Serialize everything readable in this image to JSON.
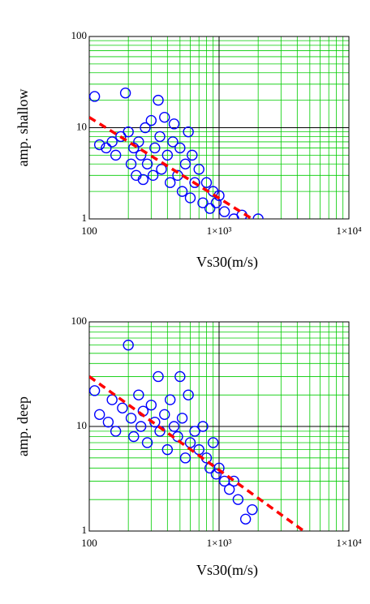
{
  "chart_data": [
    {
      "type": "scatter",
      "y_label": "amp. shallow",
      "x_label": "Vs30(m/s)",
      "log_x": true,
      "log_y": true,
      "grid": true,
      "minor_grid": true,
      "xlim": [
        100,
        10000
      ],
      "ylim": [
        1,
        100
      ],
      "xticks": [
        100,
        {
          "value": 1000,
          "label": "1×10³"
        },
        {
          "value": 10000,
          "label": "1×10⁴"
        }
      ],
      "yticks": [
        1,
        10,
        100
      ],
      "series": [
        {
          "type": "scatter",
          "color": "#0000ff",
          "x": [
            110,
            120,
            135,
            150,
            160,
            175,
            190,
            200,
            210,
            220,
            230,
            240,
            250,
            260,
            270,
            280,
            300,
            310,
            320,
            340,
            350,
            360,
            380,
            400,
            420,
            440,
            450,
            480,
            500,
            520,
            550,
            580,
            600,
            620,
            650,
            700,
            750,
            800,
            850,
            900,
            950,
            1000,
            1100,
            1300,
            1500,
            2000
          ],
          "values": [
            22,
            6.5,
            6,
            7,
            5,
            8,
            24,
            9,
            4,
            6,
            3,
            7,
            5,
            2.7,
            10,
            4,
            12,
            3,
            6,
            20,
            8,
            3.5,
            13,
            5,
            2.5,
            7,
            11,
            3,
            6,
            2,
            4,
            9,
            1.7,
            5,
            2.5,
            3.5,
            1.5,
            2.5,
            1.3,
            2,
            1.5,
            1.8,
            1.2,
            1.0,
            1.1,
            1.0
          ]
        },
        {
          "type": "line",
          "color": "#ff0000",
          "x": [
            100,
            1800
          ],
          "values": [
            13,
            1
          ]
        }
      ]
    },
    {
      "type": "scatter",
      "y_label": "amp. deep",
      "x_label": "Vs30(m/s)",
      "log_x": true,
      "log_y": true,
      "grid": true,
      "minor_grid": true,
      "xlim": [
        100,
        10000
      ],
      "ylim": [
        1,
        100
      ],
      "xticks": [
        100,
        {
          "value": 1000,
          "label": "1×10³"
        },
        {
          "value": 10000,
          "label": "1×10⁴"
        }
      ],
      "yticks": [
        1,
        10,
        100
      ],
      "series": [
        {
          "type": "scatter",
          "color": "#0000ff",
          "x": [
            110,
            120,
            140,
            150,
            160,
            180,
            200,
            210,
            220,
            240,
            250,
            260,
            280,
            300,
            320,
            340,
            350,
            380,
            400,
            420,
            450,
            480,
            500,
            520,
            550,
            580,
            600,
            650,
            700,
            750,
            800,
            850,
            900,
            950,
            1000,
            1100,
            1200,
            1300,
            1400,
            1600,
            1800
          ],
          "values": [
            22,
            13,
            11,
            18,
            9,
            15,
            60,
            12,
            8,
            20,
            10,
            14,
            7,
            16,
            11,
            30,
            9,
            13,
            6,
            18,
            10,
            8,
            30,
            12,
            5,
            20,
            7,
            9,
            6,
            10,
            5,
            4,
            7,
            3.5,
            4,
            3,
            2.5,
            3,
            2,
            1.3,
            1.6
          ]
        },
        {
          "type": "line",
          "color": "#ff0000",
          "x": [
            100,
            4500
          ],
          "values": [
            30,
            1
          ]
        }
      ]
    }
  ]
}
